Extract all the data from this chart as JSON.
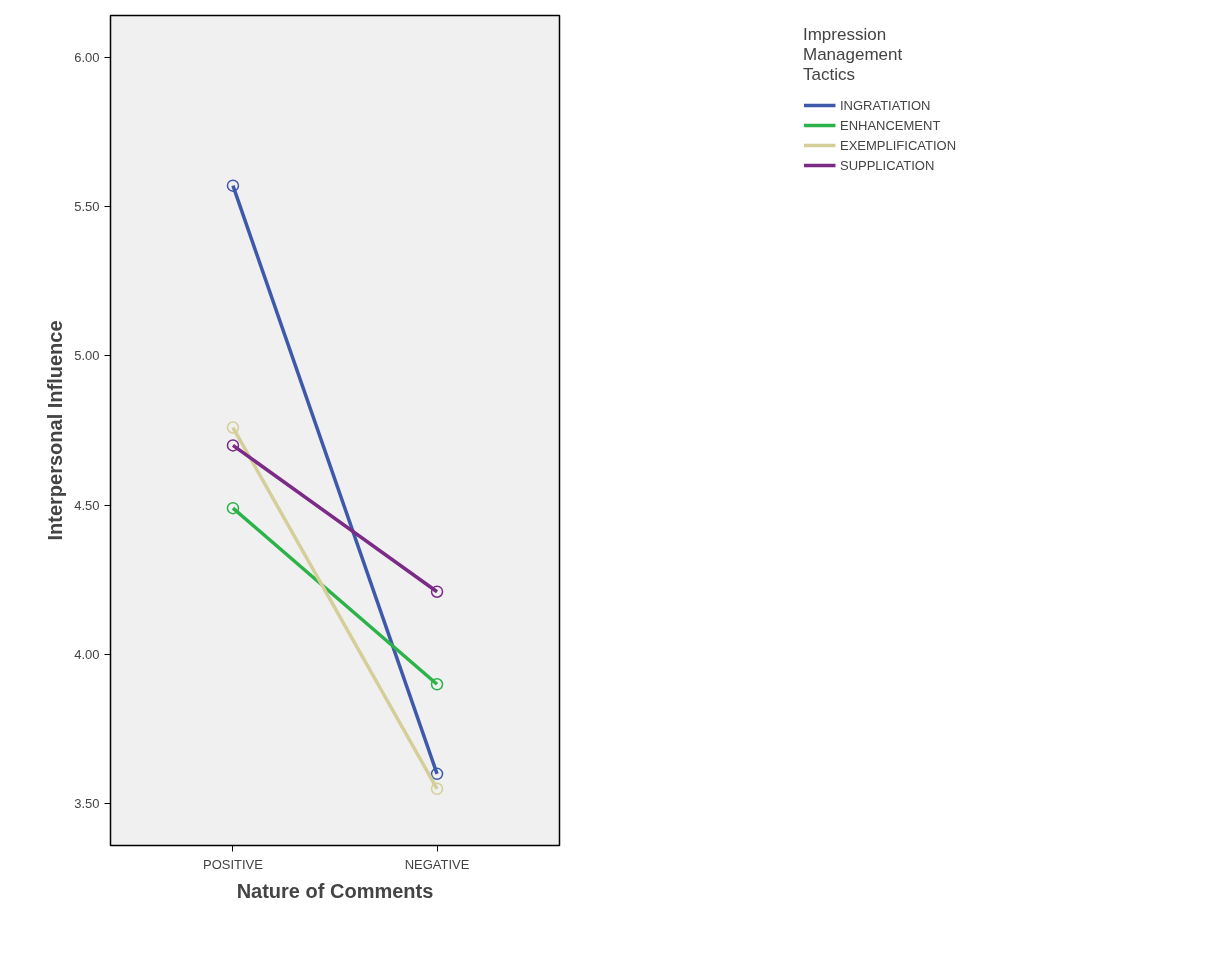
{
  "chart_data": {
    "type": "line",
    "xlabel": "Nature of Comments",
    "ylabel": "Interpersonal Influence",
    "legend_title": "Impression Management Tactics",
    "categories": [
      "POSITIVE",
      "NEGATIVE"
    ],
    "series": [
      {
        "name": "INGRATIATION",
        "color": "#3e58ac",
        "values": [
          5.57,
          3.6
        ]
      },
      {
        "name": "ENHANCEMENT",
        "color": "#2bb34a",
        "values": [
          4.49,
          3.9
        ]
      },
      {
        "name": "EXEMPLIFICATION",
        "color": "#d4cf99",
        "values": [
          4.76,
          3.55
        ]
      },
      {
        "name": "SUPPLICATION",
        "color": "#7b2a87",
        "values": [
          4.7,
          4.21
        ]
      }
    ],
    "ylim": [
      3.36,
      6.14
    ],
    "yticks": [
      {
        "value": 3.5,
        "label": "3.50"
      },
      {
        "value": 4.0,
        "label": "4.00"
      },
      {
        "value": 4.5,
        "label": "4.50"
      },
      {
        "value": 5.0,
        "label": "5.00"
      },
      {
        "value": 5.5,
        "label": "5.50"
      },
      {
        "value": 6.0,
        "label": "6.00"
      }
    ],
    "grid": false,
    "legend": "top right",
    "marker": "circle",
    "line_style": "solid"
  }
}
